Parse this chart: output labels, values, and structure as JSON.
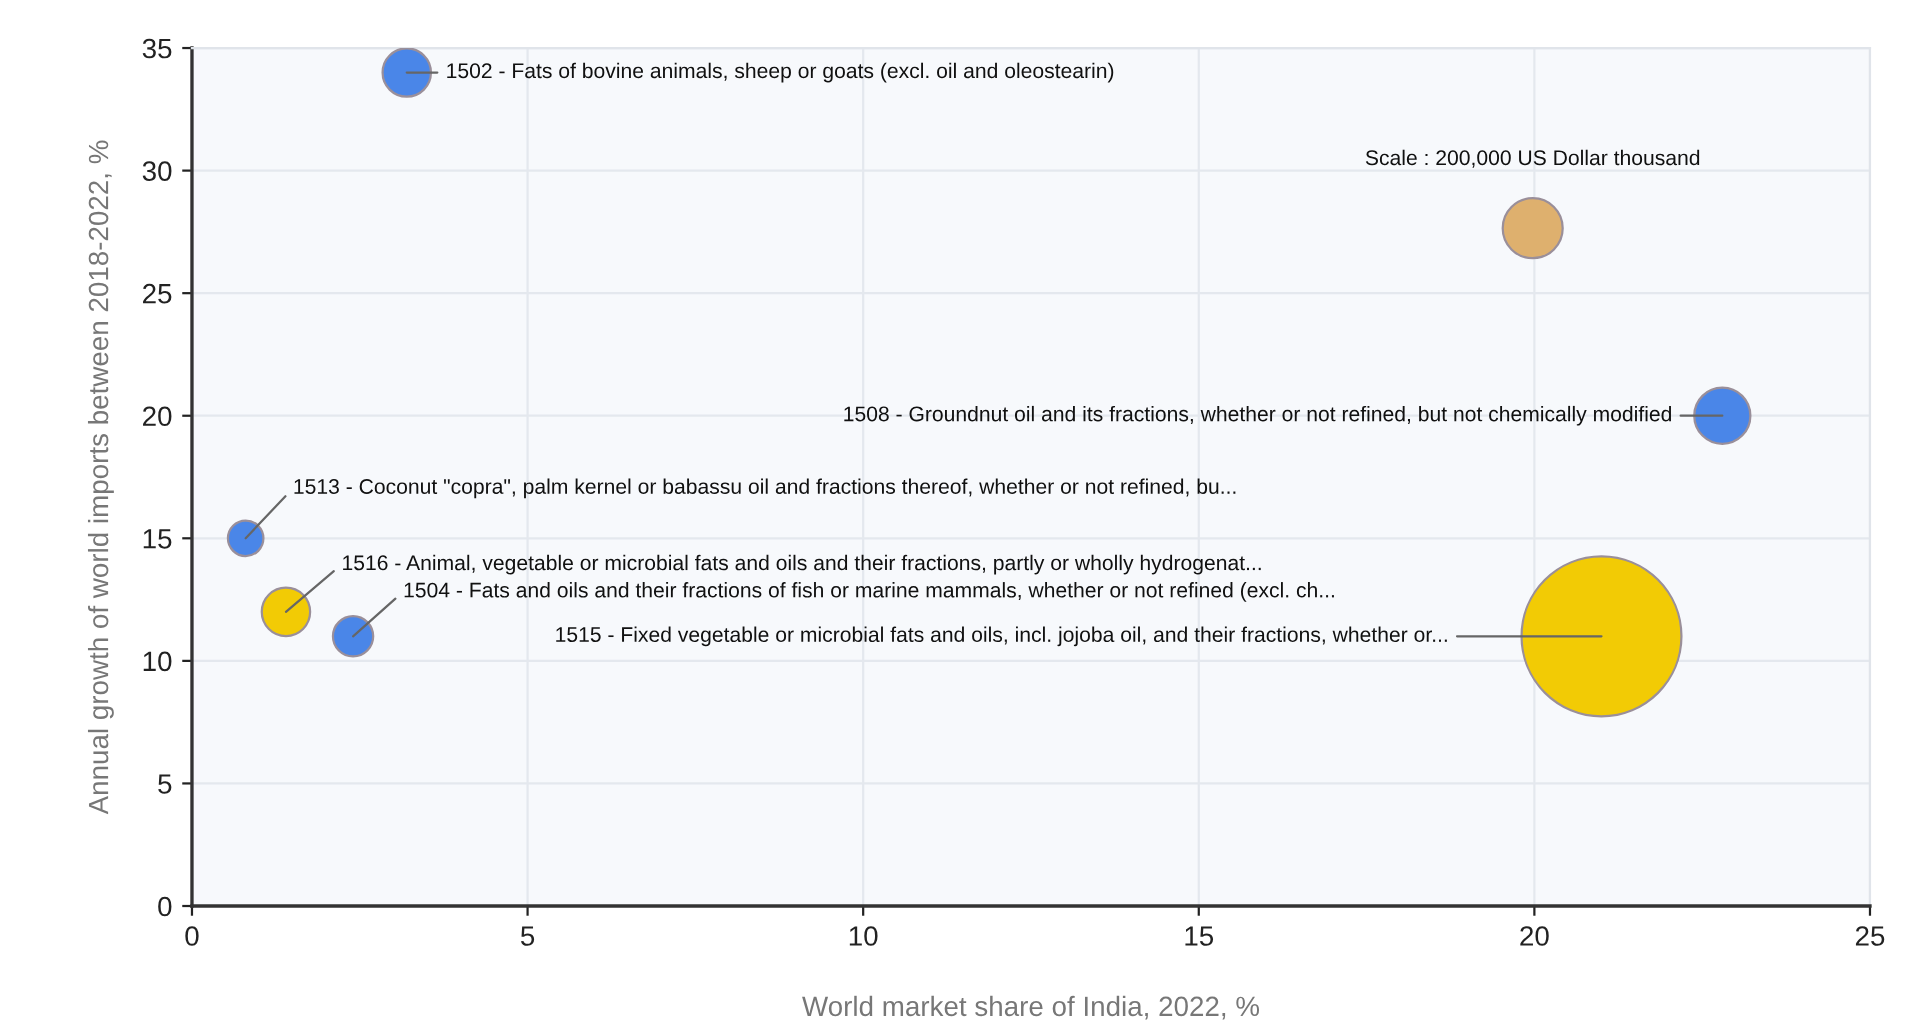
{
  "chart_data": {
    "type": "bubble",
    "xlabel": "World market share of India, 2022, %",
    "ylabel": "Annual growth of world imports between 2018-2022, %",
    "xlim": [
      0,
      25
    ],
    "xticks": [
      0,
      5,
      10,
      15,
      20,
      25
    ],
    "ylim": [
      0,
      35
    ],
    "yticks": [
      0,
      5,
      10,
      15,
      20,
      25,
      30,
      35
    ],
    "grid": true,
    "legend": false,
    "series": [
      {
        "x": [
          3.2,
          22.8,
          0.8,
          1.4,
          2.4,
          21.0
        ],
        "values": [
          34,
          20,
          15,
          12,
          11,
          11
        ],
        "sizes": [
          130000,
          175000,
          70000,
          130000,
          90000,
          1420000
        ],
        "colors": [
          "#4a86e8",
          "#4a86e8",
          "#4a86e8",
          "#f2cb05",
          "#4a86e8",
          "#f2cb05"
        ]
      }
    ],
    "size_legend": [
      {
        "value": 200000,
        "label": "Scale : 200,000 US Dollar thousand"
      }
    ],
    "annotations": [
      {
        "text": "1502 - Fats of bovine animals, sheep or goats (excl. oil and oleostearin)",
        "x": 3.2,
        "y": 34
      },
      {
        "text": "1508 - Groundnut oil and its fractions, whether or not refined, but not chemically modified",
        "x": 22.8,
        "y": 20
      },
      {
        "text": "1513 - Coconut \"copra\", palm kernel or babassu oil and fractions thereof, whether or not refined, bu...",
        "x": 0.8,
        "y": 15
      },
      {
        "text": "1516 - Animal, vegetable or microbial fats and oils and their fractions, partly or wholly hydrogenat...",
        "x": 1.4,
        "y": 12
      },
      {
        "text": "1504 - Fats and oils and their fractions of fish or marine mammals, whether or not refined (excl. ch...",
        "x": 2.4,
        "y": 11
      },
      {
        "text": "1515 - Fixed vegetable or microbial fats and oils, incl. jojoba oil, and their fractions, whether or...",
        "x": 21.0,
        "y": 11
      }
    ]
  }
}
